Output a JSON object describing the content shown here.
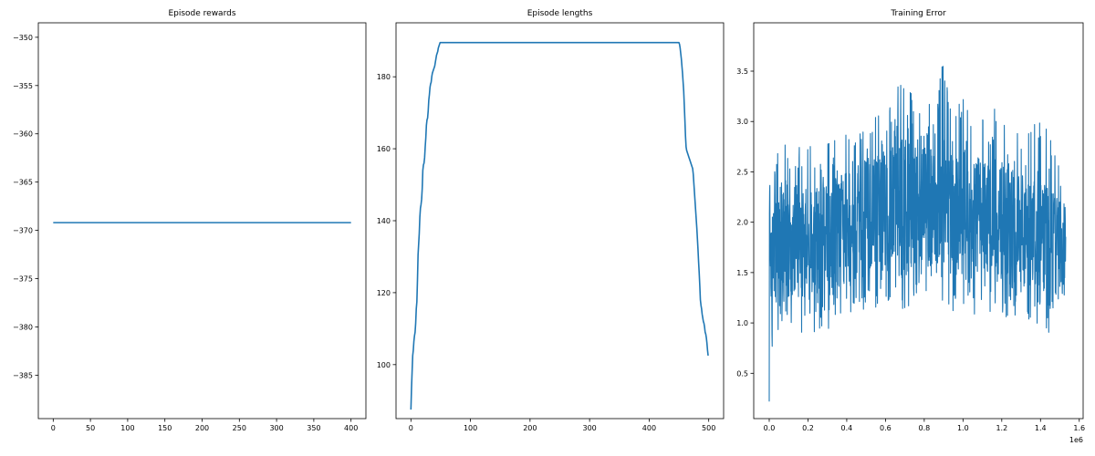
{
  "chart_data": [
    {
      "type": "line",
      "title": "Episode rewards",
      "xlabel": "",
      "ylabel": "",
      "xlim": [
        -20,
        420
      ],
      "ylim": [
        -389.5,
        -348.5
      ],
      "xticks": [
        0,
        50,
        100,
        150,
        200,
        250,
        300,
        350,
        400
      ],
      "xtick_labels": [
        "0",
        "50",
        "100",
        "150",
        "200",
        "250",
        "300",
        "350",
        "400"
      ],
      "yticks": [
        -350,
        -355,
        -360,
        -365,
        -370,
        -375,
        -380,
        -385
      ],
      "ytick_labels": [
        "−350",
        "−355",
        "−360",
        "−365",
        "−370",
        "−375",
        "−380",
        "−385"
      ],
      "series": [
        {
          "x": [
            0,
            400
          ],
          "y": [
            -369.2,
            -369.2
          ]
        }
      ]
    },
    {
      "type": "line",
      "title": "Episode lengths",
      "xlabel": "",
      "ylabel": "",
      "xlim": [
        -25,
        525
      ],
      "ylim": [
        85,
        195
      ],
      "xticks": [
        0,
        100,
        200,
        300,
        400,
        500
      ],
      "xtick_labels": [
        "0",
        "100",
        "200",
        "300",
        "400",
        "500"
      ],
      "yticks": [
        100,
        120,
        140,
        160,
        180
      ],
      "ytick_labels": [
        "100",
        "120",
        "140",
        "160",
        "180"
      ],
      "series": [
        {
          "x": [
            0,
            1,
            2,
            3,
            4,
            5,
            6,
            7,
            8,
            9,
            10,
            11,
            12,
            13,
            14,
            15,
            16,
            17,
            18,
            19,
            20,
            21,
            22,
            23,
            24,
            25,
            26,
            27,
            28,
            29,
            30,
            31,
            32,
            33,
            34,
            35,
            36,
            37,
            38,
            39,
            40,
            41,
            42,
            43,
            44,
            45,
            46,
            47,
            48,
            49,
            50,
            52,
            100,
            200,
            300,
            400,
            449,
            450,
            451,
            452,
            453,
            454,
            455,
            456,
            457,
            458,
            459,
            460,
            461,
            462,
            463,
            464,
            465,
            466,
            467,
            468,
            469,
            470,
            471,
            472,
            473,
            474,
            475,
            476,
            477,
            478,
            479,
            480,
            481,
            482,
            483,
            484,
            485,
            486,
            487,
            488,
            489,
            490,
            491,
            492,
            493,
            494,
            495,
            496,
            497,
            498,
            499
          ],
          "y": [
            87.5,
            93.5,
            98.0,
            102.5,
            104.0,
            106.5,
            108.0,
            109.0,
            111.5,
            115.5,
            117.5,
            123.5,
            130.5,
            133.5,
            136.5,
            141.0,
            143.5,
            144.5,
            146.0,
            149.0,
            154.0,
            155.5,
            156.0,
            157.5,
            160.5,
            163.0,
            166.5,
            168.0,
            168.5,
            170.5,
            173.5,
            175.0,
            177.0,
            178.0,
            178.5,
            180.0,
            181.0,
            181.5,
            182.0,
            182.5,
            183.0,
            184.0,
            185.0,
            186.0,
            186.5,
            187.0,
            188.0,
            188.5,
            189.0,
            189.5,
            189.5,
            189.5,
            189.5,
            189.5,
            189.5,
            189.5,
            189.5,
            189.5,
            189.0,
            188.0,
            186.5,
            185.0,
            183.0,
            181.0,
            178.5,
            176.0,
            172.0,
            168.0,
            163.5,
            160.5,
            159.5,
            159.0,
            158.5,
            158.0,
            157.5,
            157.0,
            156.5,
            156.0,
            155.5,
            155.0,
            154.5,
            153.0,
            150.5,
            148.0,
            145.5,
            143.0,
            140.5,
            138.0,
            135.0,
            132.0,
            128.5,
            125.5,
            122.0,
            118.0,
            116.5,
            115.5,
            114.0,
            113.0,
            112.0,
            111.5,
            110.5,
            109.0,
            108.5,
            107.5,
            106.0,
            104.0,
            102.5
          ]
        }
      ]
    },
    {
      "type": "line",
      "title": "Training Error",
      "xlabel": "",
      "ylabel": "",
      "xlim": [
        -80000,
        1620000
      ],
      "ylim": [
        0.05,
        3.98
      ],
      "xticks": [
        0,
        200000,
        400000,
        600000,
        800000,
        1000000,
        1200000,
        1400000,
        1600000
      ],
      "xtick_labels": [
        "0.0",
        "0.2",
        "0.4",
        "0.6",
        "0.8",
        "1.0",
        "1.2",
        "1.4",
        "1.6"
      ],
      "x_offset_label": "1e6",
      "yticks": [
        0.5,
        1.0,
        1.5,
        2.0,
        2.5,
        3.0,
        3.5
      ],
      "ytick_labels": [
        "0.5",
        "1.0",
        "1.5",
        "2.0",
        "2.5",
        "3.0",
        "3.5"
      ],
      "series": [
        {
          "x": [
            0,
            10000,
            20000,
            40000,
            60000,
            80000,
            100000,
            150000,
            200000,
            250000,
            300000,
            350000,
            400000,
            450000,
            500000,
            550000,
            600000,
            650000,
            700000,
            750000,
            800000,
            850000,
            900000,
            950000,
            1000000,
            1050000,
            1100000,
            1150000,
            1200000,
            1250000,
            1300000,
            1350000,
            1400000,
            1450000,
            1500000,
            1530000
          ],
          "y_center": [
            1.75,
            1.72,
            1.72,
            1.72,
            1.74,
            1.76,
            1.77,
            1.78,
            1.79,
            1.82,
            1.86,
            1.91,
            1.97,
            2.03,
            2.08,
            2.11,
            2.13,
            2.14,
            2.15,
            2.16,
            2.16,
            2.16,
            2.15,
            2.13,
            2.11,
            2.08,
            2.06,
            2.02,
            1.99,
            1.95,
            1.91,
            1.86,
            1.81,
            1.76,
            1.72,
            1.71
          ],
          "y_min": [
            0.22,
            0.6,
            0.75,
            0.85,
            0.85,
            0.9,
            0.95,
            0.9,
            0.75,
            0.8,
            0.85,
            0.9,
            0.95,
            1.05,
            1.1,
            1.1,
            1.15,
            1.05,
            1.05,
            1.05,
            1.1,
            1.15,
            1.05,
            1.0,
            1.0,
            1.0,
            1.05,
            1.05,
            1.0,
            1.0,
            1.05,
            0.95,
            0.9,
            0.85,
            0.8,
            0.55
          ],
          "y_max": [
            2.65,
            2.85,
            2.8,
            2.8,
            2.65,
            3.0,
            2.75,
            2.8,
            2.85,
            2.7,
            2.9,
            2.85,
            2.95,
            3.0,
            3.15,
            3.25,
            3.2,
            3.25,
            3.8,
            3.15,
            3.2,
            3.25,
            3.7,
            3.15,
            3.3,
            3.05,
            3.1,
            3.15,
            3.3,
            3.05,
            3.0,
            3.0,
            3.25,
            2.95,
            2.6,
            2.5
          ]
        }
      ]
    }
  ]
}
